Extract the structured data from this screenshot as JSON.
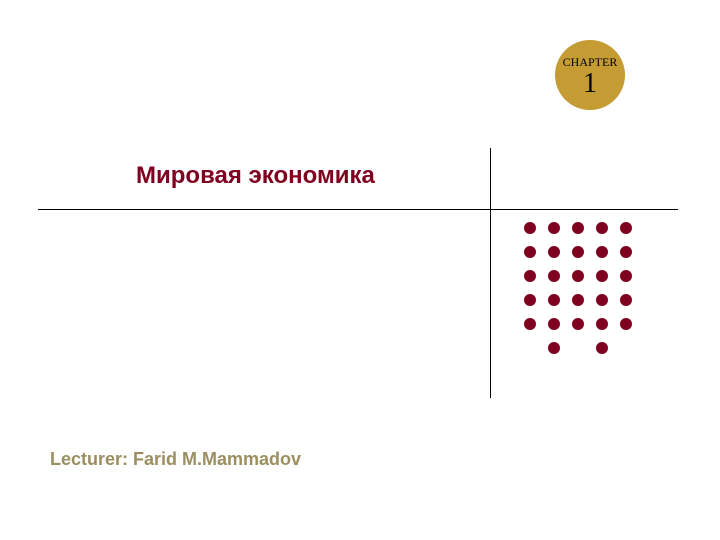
{
  "chapter": {
    "label": "CHAPTER",
    "number": "1",
    "badge_color": "#c59b34"
  },
  "title": {
    "text": "Мировая экономика",
    "color": "#800020"
  },
  "lecturer": {
    "text": "Lecturer: Farid M.Mammadov",
    "color": "#9b8f61"
  },
  "dots": {
    "color": "#800020",
    "rows": [
      [
        1,
        1,
        1,
        1,
        1
      ],
      [
        1,
        1,
        1,
        1,
        1
      ],
      [
        1,
        1,
        1,
        1,
        1
      ],
      [
        1,
        1,
        1,
        1,
        1
      ],
      [
        1,
        1,
        1,
        1,
        1
      ],
      [
        0,
        1,
        0,
        1,
        0
      ]
    ]
  },
  "lines": {
    "color": "#000000"
  }
}
